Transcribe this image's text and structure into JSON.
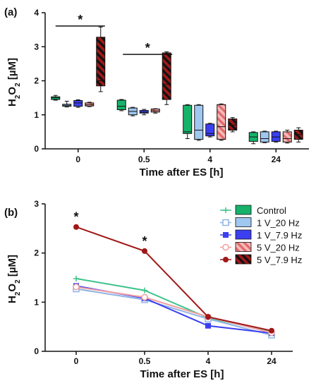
{
  "chart_data": [
    {
      "panel": "(a)",
      "type": "boxplot",
      "categories": [
        "0",
        "0.5",
        "4",
        "24"
      ],
      "xlabel": "Time after ES [h]",
      "ylabel": "H2O2 [µM]",
      "ylim": [
        0,
        4
      ],
      "yticks": [
        "0",
        "1",
        "2",
        "3",
        "4"
      ],
      "series": [
        {
          "name": "Control",
          "color": "#17b26a",
          "pattern": "solid",
          "boxes": [
            {
              "min": 1.43,
              "q1": 1.45,
              "median": 1.5,
              "q3": 1.53,
              "max": 1.57
            },
            {
              "min": 1.12,
              "q1": 1.15,
              "median": 1.25,
              "q3": 1.43,
              "max": 1.45
            },
            {
              "min": 0.3,
              "q1": 0.45,
              "median": 0.5,
              "q3": 1.28,
              "max": 1.3
            },
            {
              "min": 0.15,
              "q1": 0.22,
              "median": 0.35,
              "q3": 0.48,
              "max": 0.5
            }
          ]
        },
        {
          "name": "1 V_20 Hz",
          "color": "#9fc7ef",
          "pattern": "solid",
          "boxes": [
            {
              "min": 1.23,
              "q1": 1.25,
              "median": 1.28,
              "q3": 1.31,
              "max": 1.4
            },
            {
              "min": 0.97,
              "q1": 1.0,
              "median": 1.1,
              "q3": 1.2,
              "max": 1.22
            },
            {
              "min": 0.25,
              "q1": 0.28,
              "median": 0.55,
              "q3": 1.28,
              "max": 1.3
            },
            {
              "min": 0.18,
              "q1": 0.2,
              "median": 0.3,
              "q3": 0.5,
              "max": 0.52
            }
          ]
        },
        {
          "name": "1 V_7.9 Hz",
          "color": "#3b3ff0",
          "pattern": "solid",
          "boxes": [
            {
              "min": 1.22,
              "q1": 1.25,
              "median": 1.35,
              "q3": 1.42,
              "max": 1.44
            },
            {
              "min": 1.0,
              "q1": 1.05,
              "median": 1.08,
              "q3": 1.13,
              "max": 1.16
            },
            {
              "min": 0.35,
              "q1": 0.38,
              "median": 0.45,
              "q3": 0.73,
              "max": 0.75
            },
            {
              "min": 0.2,
              "q1": 0.22,
              "median": 0.35,
              "q3": 0.5,
              "max": 0.52
            }
          ]
        },
        {
          "name": "5 V_20 Hz",
          "color": "#f0a0a0",
          "pattern": "hatch-light",
          "boxes": [
            {
              "min": 1.24,
              "q1": 1.26,
              "median": 1.3,
              "q3": 1.35,
              "max": 1.37
            },
            {
              "min": 1.05,
              "q1": 1.08,
              "median": 1.12,
              "q3": 1.17,
              "max": 1.18
            },
            {
              "min": 0.25,
              "q1": 0.28,
              "median": 0.65,
              "q3": 1.3,
              "max": 1.32
            },
            {
              "min": 0.17,
              "q1": 0.2,
              "median": 0.3,
              "q3": 0.5,
              "max": 0.55
            }
          ]
        },
        {
          "name": "5 V_7.9 Hz",
          "color": "#a01818",
          "pattern": "hatch-dark",
          "boxes": [
            {
              "min": 1.68,
              "q1": 1.85,
              "median": 2.0,
              "q3": 3.28,
              "max": 3.58
            },
            {
              "min": 1.3,
              "q1": 1.45,
              "median": 1.9,
              "q3": 2.82,
              "max": 2.85
            },
            {
              "min": 0.5,
              "q1": 0.55,
              "median": 0.7,
              "q3": 0.88,
              "max": 0.92
            },
            {
              "min": 0.2,
              "q1": 0.28,
              "median": 0.42,
              "q3": 0.55,
              "max": 0.62
            }
          ]
        }
      ],
      "annotations": [
        {
          "text": "*",
          "bracket_x_category": [
            0,
            0
          ],
          "y": 3.9
        },
        {
          "text": "*",
          "bracket_x_category": [
            1,
            1
          ],
          "y": 2.9
        }
      ]
    },
    {
      "panel": "(b)",
      "type": "line",
      "categories": [
        "0",
        "0.5",
        "4",
        "24"
      ],
      "xlabel": "Time after ES [h]",
      "ylabel": "H2O2 [µM]",
      "ylim": [
        0,
        3
      ],
      "yticks": [
        "0",
        "1",
        "2",
        "3"
      ],
      "legend_position": "top-right",
      "series": [
        {
          "name": "Control",
          "color": "#3cc38a",
          "marker": "plus",
          "values": [
            1.48,
            1.24,
            0.68,
            0.4
          ]
        },
        {
          "name": "1 V_20 Hz",
          "color": "#8fb4e3",
          "marker": "square-open",
          "values": [
            1.27,
            1.05,
            0.66,
            0.33
          ]
        },
        {
          "name": "1 V_7.9 Hz",
          "color": "#3b3ff0",
          "marker": "square",
          "values": [
            1.33,
            1.08,
            0.52,
            0.37
          ]
        },
        {
          "name": "5 V_20 Hz",
          "color": "#f0a0a0",
          "marker": "circle-open",
          "values": [
            1.31,
            1.1,
            0.7,
            0.38
          ]
        },
        {
          "name": "5 V_7.9 Hz",
          "color": "#a01818",
          "marker": "circle",
          "values": [
            2.53,
            2.04,
            0.7,
            0.42
          ]
        }
      ],
      "annotations": [
        {
          "text": "*",
          "category": 0,
          "y": 2.53
        },
        {
          "text": "*",
          "category": 1,
          "y": 2.04
        }
      ]
    }
  ]
}
